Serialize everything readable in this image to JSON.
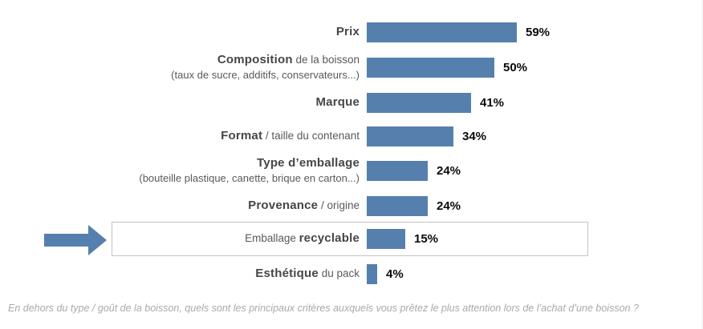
{
  "chart_data": {
    "type": "bar",
    "orientation": "horizontal",
    "title": "",
    "categories": [
      "Prix",
      "Composition de la boisson (taux de sucre, additifs, conservateurs...)",
      "Marque",
      "Format / taille du contenant",
      "Type d’emballage (bouteille plastique, canette, brique en carton...)",
      "Provenance / origine",
      "Emballage recyclable",
      "Esthétique du pack"
    ],
    "values": [
      59,
      50,
      41,
      34,
      24,
      24,
      15,
      4
    ],
    "unit": "%",
    "xlim": [
      0,
      100
    ],
    "grid": false,
    "legend": false,
    "bar_color": "#5580AD",
    "highlighted_category": "Emballage recyclable",
    "annotation": "Blue block arrow and thin gray outlined box highlight the 'Emballage recyclable' row (15%)"
  },
  "rows": [
    {
      "parts": [
        {
          "text": "Prix",
          "bold": true
        }
      ],
      "subline": "",
      "value": 59,
      "value_label": "59%",
      "highlighted": false
    },
    {
      "parts": [
        {
          "text": "Composition",
          "bold": true
        },
        {
          "text": " de la boisson",
          "bold": false
        }
      ],
      "subline": "(taux de sucre, additifs, conservateurs...)",
      "value": 50,
      "value_label": "50%",
      "highlighted": false
    },
    {
      "parts": [
        {
          "text": "Marque",
          "bold": true
        }
      ],
      "subline": "",
      "value": 41,
      "value_label": "41%",
      "highlighted": false
    },
    {
      "parts": [
        {
          "text": "Format",
          "bold": true
        },
        {
          "text": " / taille du contenant",
          "bold": false
        }
      ],
      "subline": "",
      "value": 34,
      "value_label": "34%",
      "highlighted": false
    },
    {
      "parts": [
        {
          "text": "Type d’emballage",
          "bold": true
        }
      ],
      "subline": "(bouteille plastique, canette, brique en carton...)",
      "value": 24,
      "value_label": "24%",
      "highlighted": false
    },
    {
      "parts": [
        {
          "text": "Provenance",
          "bold": true
        },
        {
          "text": " / origine",
          "bold": false
        }
      ],
      "subline": "",
      "value": 24,
      "value_label": "24%",
      "highlighted": false
    },
    {
      "parts": [
        {
          "text": "Emballage ",
          "bold": false
        },
        {
          "text": "recyclable",
          "bold": true
        }
      ],
      "subline": "",
      "value": 15,
      "value_label": "15%",
      "highlighted": true
    },
    {
      "parts": [
        {
          "text": "Esthétique",
          "bold": true
        },
        {
          "text": " du pack",
          "bold": false
        }
      ],
      "subline": "",
      "value": 4,
      "value_label": "4%",
      "highlighted": false
    }
  ],
  "caption": "En dehors du type / goût de la boisson, quels sont les principaux critères auxquels vous prêtez le plus attention lors de l’achat d’une boisson ?",
  "colors": {
    "bar": "#5580AD",
    "arrow": "#5580AD",
    "label_bold": "#464646",
    "label_regular": "#595959",
    "value": "#0a0a0a",
    "caption": "#a9a9a9",
    "highlight_border": "#c3c3c3"
  }
}
